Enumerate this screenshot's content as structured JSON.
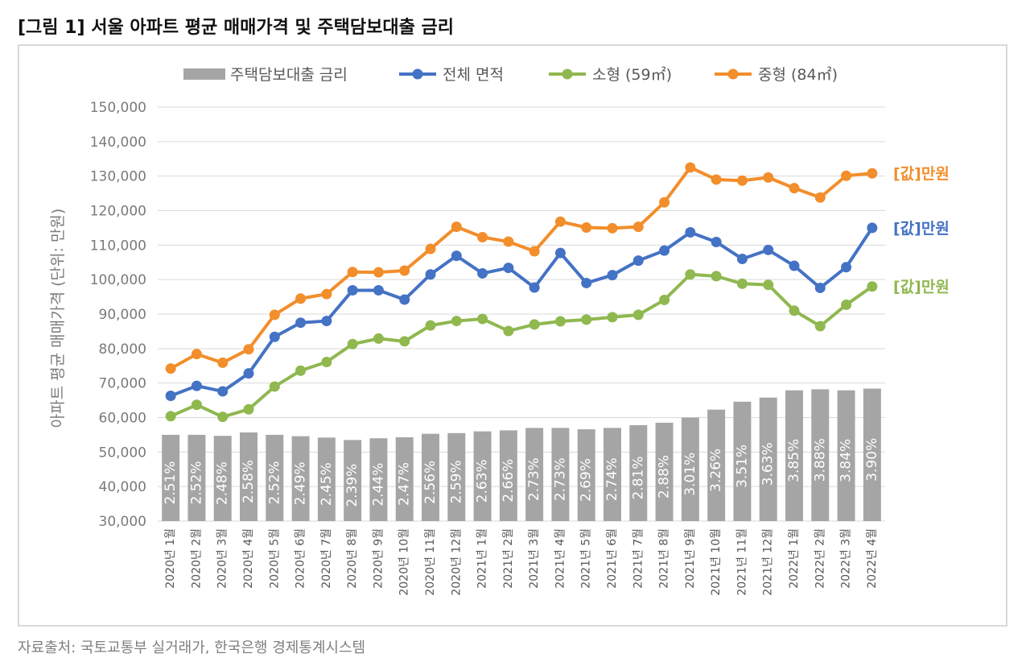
{
  "figure_title": "[그림 1] 서울 아파트 평균 매매가격 및 주택담보대출 금리",
  "source_note": "자료출처: 국토교통부 실거래가, 한국은행 경제통계시스템",
  "chart_data": {
    "type": "bar+line",
    "ylabel": "아파트 평균 매매가격 (단위: 만원)",
    "ylim": [
      30000,
      150000
    ],
    "yticks": [
      30000,
      40000,
      50000,
      60000,
      70000,
      80000,
      90000,
      100000,
      110000,
      120000,
      130000,
      140000,
      150000
    ],
    "ytick_labels": [
      "30,000",
      "40,000",
      "50,000",
      "60,000",
      "70,000",
      "80,000",
      "90,000",
      "100,000",
      "110,000",
      "120,000",
      "130,000",
      "140,000",
      "150,000"
    ],
    "grid": true,
    "legend_position": "top",
    "categories": [
      "2020년 1월",
      "2020년 2월",
      "2020년 3월",
      "2020년 4월",
      "2020년 5월",
      "2020년 6월",
      "2020년 7월",
      "2020년 8월",
      "2020년 9월",
      "2020년 10월",
      "2020년 11월",
      "2020년 12월",
      "2021년 1월",
      "2021년 2월",
      "2021년 3월",
      "2021년 4월",
      "2021년 5월",
      "2021년 6월",
      "2021년 7월",
      "2021년 8월",
      "2021년 9월",
      "2021년 10월",
      "2021년 11월",
      "2021년 12월",
      "2022년 1월",
      "2022년 2월",
      "2022년 3월",
      "2022년 4월"
    ],
    "bar_series": {
      "name": "주택담보대출 금리",
      "color": "#a5a5a5",
      "rates": [
        2.51,
        2.52,
        2.48,
        2.58,
        2.52,
        2.49,
        2.45,
        2.39,
        2.44,
        2.47,
        2.56,
        2.59,
        2.63,
        2.66,
        2.73,
        2.73,
        2.69,
        2.74,
        2.81,
        2.88,
        3.01,
        3.26,
        3.51,
        3.63,
        3.85,
        3.88,
        3.84,
        3.9
      ],
      "labels": [
        "2.51%",
        "2.52%",
        "2.48%",
        "2.58%",
        "2.52%",
        "2.49%",
        "2.45%",
        "2.39%",
        "2.44%",
        "2.47%",
        "2.56%",
        "2.59%",
        "2.63%",
        "2.66%",
        "2.73%",
        "2.73%",
        "2.69%",
        "2.74%",
        "2.81%",
        "2.88%",
        "3.01%",
        "3.26%",
        "3.51%",
        "3.63%",
        "3.85%",
        "3.88%",
        "3.84%",
        "3.90%"
      ],
      "bar_tops": [
        55000,
        55000,
        54700,
        55700,
        55000,
        54600,
        54200,
        53500,
        54000,
        54300,
        55300,
        55500,
        56000,
        56300,
        57000,
        57000,
        56600,
        57000,
        57800,
        58500,
        60000,
        62300,
        64600,
        65800,
        67900,
        68200,
        67900,
        68400
      ]
    },
    "series": [
      {
        "name": "전체 면적",
        "color": "#4472c4",
        "values": [
          66300,
          69200,
          67600,
          72800,
          83400,
          87500,
          88000,
          96900,
          96900,
          94200,
          101500,
          106900,
          101800,
          103400,
          97700,
          107700,
          99000,
          101300,
          105500,
          108400,
          113700,
          110900,
          106000,
          108600,
          104000,
          97600,
          103600,
          115000
        ],
        "end_label": "[값]만원"
      },
      {
        "name": "소형 (59㎡)",
        "color": "#8fb84f",
        "values": [
          60400,
          63700,
          60200,
          62400,
          69000,
          73600,
          76100,
          81300,
          82900,
          82100,
          86700,
          88000,
          88600,
          85100,
          87000,
          87900,
          88400,
          89100,
          89800,
          94100,
          101500,
          101000,
          98800,
          98500,
          91000,
          86500,
          92700,
          98000
        ],
        "end_label": "[값]만원"
      },
      {
        "name": "중형 (84㎡)",
        "color": "#f28e2b",
        "values": [
          74200,
          78400,
          75900,
          79800,
          89800,
          94500,
          95800,
          102200,
          102100,
          102600,
          108900,
          115300,
          112300,
          111000,
          108200,
          116800,
          115100,
          114900,
          115300,
          122400,
          132500,
          129000,
          128700,
          129600,
          126500,
          123800,
          130100,
          130800
        ],
        "end_label": "[값]만원"
      }
    ]
  }
}
